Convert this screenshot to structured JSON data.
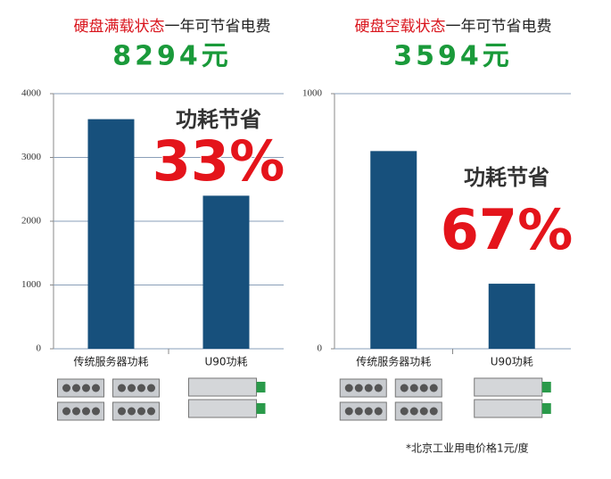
{
  "chart_data": [
    {
      "type": "bar",
      "title_highlight": "硬盘满载状态",
      "title": "一年可节省电费",
      "savings": "8294元",
      "annotation_title": "功耗节省",
      "annotation_value": "33%",
      "categories": [
        "传统服务器功耗",
        "U90功耗"
      ],
      "values": [
        3600,
        2400
      ],
      "color": "#17507c",
      "ylim": [
        0,
        4000
      ],
      "yticks": [
        0,
        1000,
        2000,
        3000,
        4000
      ],
      "grid": true
    },
    {
      "type": "bar",
      "title_highlight": "硬盘空载状态",
      "title": "一年可节省电费",
      "savings": "3594元",
      "annotation_title": "功耗节省",
      "annotation_value": "67%",
      "categories": [
        "传统服务器功耗",
        "U90功耗"
      ],
      "values": [
        775,
        255
      ],
      "color": "#17507c",
      "ylim": [
        0,
        1000
      ],
      "yticks": [
        0,
        1000
      ],
      "grid": true
    }
  ],
  "footnote": "*北京工业用电价格1元/度"
}
